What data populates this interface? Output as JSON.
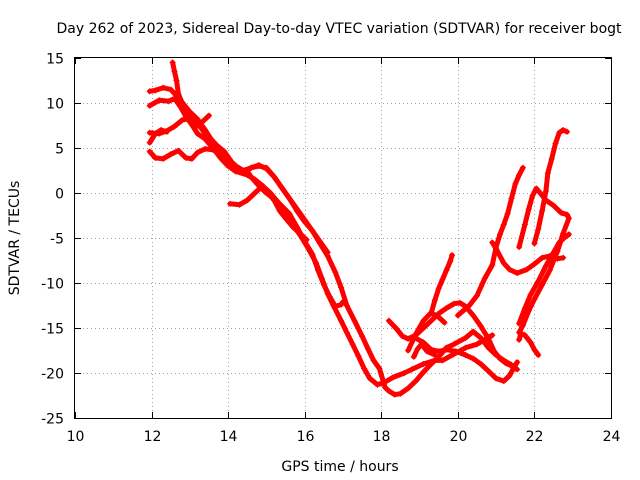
{
  "chart_data": {
    "type": "line",
    "title": "Day 262 of 2023, Sidereal Day-to-day VTEC variation (SDTVAR) for receiver bogt",
    "xlabel": "GPS time / hours",
    "ylabel": "SDTVAR / TECUs",
    "xlim": [
      10,
      24
    ],
    "ylim": [
      -25,
      15
    ],
    "xticks": [
      10,
      12,
      14,
      16,
      18,
      20,
      22,
      24
    ],
    "yticks": [
      -25,
      -20,
      -15,
      -10,
      -5,
      0,
      5,
      10,
      15
    ],
    "grid": true,
    "marker": "plus",
    "color": "#ff0000",
    "series": [
      {
        "points": [
          [
            12.55,
            14.5
          ],
          [
            12.6,
            13.5
          ],
          [
            12.65,
            12.5
          ],
          [
            12.7,
            11.0
          ],
          [
            12.8,
            10.0
          ],
          [
            12.9,
            9.0
          ],
          [
            13.0,
            8.2
          ],
          [
            13.1,
            7.8
          ],
          [
            13.2,
            7.5
          ],
          [
            13.3,
            7.8
          ],
          [
            13.4,
            8.2
          ],
          [
            13.5,
            8.6
          ]
        ]
      },
      {
        "points": [
          [
            11.95,
            11.3
          ],
          [
            12.1,
            11.4
          ],
          [
            12.3,
            11.7
          ],
          [
            12.5,
            11.5
          ],
          [
            12.7,
            10.6
          ],
          [
            12.85,
            9.8
          ],
          [
            13.0,
            9.0
          ],
          [
            13.2,
            8.2
          ],
          [
            13.4,
            7.0
          ],
          [
            13.55,
            6.0
          ],
          [
            13.7,
            5.3
          ],
          [
            13.9,
            4.6
          ],
          [
            14.1,
            3.4
          ],
          [
            14.3,
            2.6
          ],
          [
            14.5,
            2.4
          ],
          [
            14.6,
            1.8
          ],
          [
            14.8,
            0.8
          ],
          [
            15.0,
            0.0
          ],
          [
            15.3,
            -1.0
          ],
          [
            15.6,
            -2.3
          ],
          [
            15.8,
            -3.8
          ],
          [
            16.0,
            -5.4
          ],
          [
            16.2,
            -6.8
          ],
          [
            16.35,
            -8.6
          ],
          [
            16.5,
            -10.2
          ],
          [
            16.65,
            -11.5
          ],
          [
            16.8,
            -12.6
          ],
          [
            16.95,
            -12.4
          ],
          [
            17.0,
            -12.1
          ]
        ]
      },
      {
        "points": [
          [
            11.95,
            9.7
          ],
          [
            12.2,
            10.3
          ],
          [
            12.45,
            10.2
          ],
          [
            12.6,
            10.5
          ],
          [
            12.75,
            9.6
          ],
          [
            12.9,
            8.5
          ],
          [
            13.05,
            7.6
          ],
          [
            13.2,
            6.6
          ],
          [
            13.4,
            6.0
          ],
          [
            13.6,
            5.0
          ],
          [
            13.8,
            3.9
          ],
          [
            14.0,
            3.0
          ],
          [
            14.2,
            2.4
          ],
          [
            14.5,
            2.0
          ],
          [
            14.7,
            1.5
          ],
          [
            14.9,
            0.8
          ],
          [
            15.1,
            0.0
          ],
          [
            15.3,
            -1.0
          ],
          [
            15.5,
            -2.2
          ],
          [
            15.7,
            -3.6
          ],
          [
            15.9,
            -4.8
          ],
          [
            16.1,
            -6.2
          ],
          [
            16.3,
            -7.8
          ],
          [
            16.45,
            -9.5
          ],
          [
            16.6,
            -11.2
          ],
          [
            16.75,
            -12.5
          ],
          [
            16.95,
            -14.2
          ],
          [
            17.1,
            -15.5
          ],
          [
            17.25,
            -16.8
          ],
          [
            17.4,
            -18.1
          ],
          [
            17.55,
            -19.5
          ],
          [
            17.7,
            -20.6
          ],
          [
            17.9,
            -21.3
          ],
          [
            18.1,
            -21.0
          ],
          [
            18.3,
            -20.5
          ],
          [
            18.6,
            -20.0
          ],
          [
            18.8,
            -19.6
          ],
          [
            19.1,
            -19.0
          ],
          [
            19.4,
            -18.6
          ],
          [
            19.6,
            -18.6
          ],
          [
            19.9,
            -17.9
          ],
          [
            20.2,
            -17.2
          ],
          [
            20.5,
            -16.8
          ],
          [
            20.7,
            -16.3
          ],
          [
            20.9,
            -15.8
          ]
        ]
      },
      {
        "points": [
          [
            11.95,
            6.7
          ],
          [
            12.2,
            6.6
          ],
          [
            12.4,
            6.9
          ],
          [
            12.6,
            7.4
          ],
          [
            12.8,
            8.1
          ],
          [
            13.0,
            8.3
          ],
          [
            13.2,
            7.7
          ],
          [
            13.35,
            6.9
          ],
          [
            13.5,
            5.8
          ],
          [
            13.65,
            5.0
          ],
          [
            13.8,
            4.4
          ],
          [
            14.0,
            3.5
          ],
          [
            14.2,
            2.7
          ],
          [
            14.4,
            2.3
          ],
          [
            14.6,
            2.8
          ],
          [
            14.8,
            3.1
          ],
          [
            15.0,
            2.7
          ],
          [
            15.2,
            1.8
          ],
          [
            15.4,
            0.6
          ],
          [
            15.6,
            -0.6
          ],
          [
            15.8,
            -1.8
          ],
          [
            16.0,
            -3.0
          ],
          [
            16.2,
            -4.2
          ],
          [
            16.4,
            -5.4
          ],
          [
            16.6,
            -6.6
          ]
        ]
      },
      {
        "points": [
          [
            11.95,
            5.6
          ],
          [
            12.1,
            6.6
          ],
          [
            12.25,
            7.0
          ],
          [
            12.4,
            6.8
          ]
        ]
      },
      {
        "points": [
          [
            11.95,
            4.6
          ],
          [
            12.1,
            3.9
          ],
          [
            12.3,
            3.8
          ],
          [
            12.5,
            4.3
          ],
          [
            12.7,
            4.7
          ],
          [
            12.9,
            3.9
          ],
          [
            13.05,
            3.8
          ],
          [
            13.2,
            4.5
          ],
          [
            13.4,
            4.9
          ],
          [
            13.6,
            4.8
          ],
          [
            13.8,
            4.5
          ],
          [
            14.0,
            3.8
          ],
          [
            14.2,
            3.0
          ],
          [
            14.4,
            2.5
          ],
          [
            14.6,
            2.8
          ],
          [
            14.8,
            3.0
          ],
          [
            15.0,
            2.8
          ],
          [
            15.2,
            1.8
          ],
          [
            15.4,
            0.6
          ],
          [
            15.6,
            -0.6
          ],
          [
            15.8,
            -2.0
          ],
          [
            16.0,
            -3.2
          ],
          [
            16.2,
            -4.2
          ],
          [
            16.4,
            -5.6
          ],
          [
            16.6,
            -7.0
          ],
          [
            16.8,
            -8.8
          ],
          [
            16.95,
            -10.5
          ],
          [
            17.1,
            -12.5
          ],
          [
            17.3,
            -14.2
          ],
          [
            17.5,
            -15.9
          ],
          [
            17.65,
            -17.3
          ],
          [
            17.8,
            -18.6
          ],
          [
            17.95,
            -19.5
          ],
          [
            18.1,
            -21.6
          ],
          [
            18.2,
            -22.0
          ],
          [
            18.35,
            -22.4
          ],
          [
            18.5,
            -22.3
          ],
          [
            18.7,
            -21.7
          ],
          [
            18.9,
            -20.9
          ],
          [
            19.1,
            -19.9
          ],
          [
            19.3,
            -19.0
          ],
          [
            19.5,
            -18.2
          ],
          [
            19.7,
            -17.2
          ],
          [
            19.9,
            -16.8
          ],
          [
            20.2,
            -16.1
          ],
          [
            20.4,
            -15.4
          ],
          [
            20.6,
            -16.1
          ],
          [
            20.8,
            -17.2
          ],
          [
            21.0,
            -18.0
          ],
          [
            21.2,
            -18.6
          ],
          [
            21.4,
            -19.1
          ],
          [
            21.55,
            -19.6
          ]
        ]
      },
      {
        "points": [
          [
            14.05,
            -1.2
          ],
          [
            14.3,
            -1.3
          ],
          [
            14.5,
            -0.8
          ],
          [
            14.7,
            0.0
          ],
          [
            14.9,
            0.8
          ],
          [
            15.0,
            0.3
          ],
          [
            15.2,
            -0.8
          ],
          [
            15.35,
            -2.0
          ],
          [
            15.5,
            -2.8
          ],
          [
            15.7,
            -3.8
          ],
          [
            15.9,
            -4.6
          ],
          [
            16.05,
            -5.2
          ]
        ]
      },
      {
        "points": [
          [
            18.2,
            -14.2
          ],
          [
            18.4,
            -15.1
          ],
          [
            18.55,
            -15.9
          ],
          [
            18.7,
            -16.2
          ],
          [
            18.9,
            -15.8
          ],
          [
            19.1,
            -15.0
          ],
          [
            19.3,
            -14.2
          ],
          [
            19.5,
            -13.4
          ],
          [
            19.7,
            -12.8
          ],
          [
            19.9,
            -12.3
          ],
          [
            20.05,
            -12.2
          ],
          [
            20.2,
            -12.6
          ],
          [
            20.4,
            -13.6
          ],
          [
            20.6,
            -14.8
          ],
          [
            20.8,
            -16.2
          ],
          [
            20.95,
            -17.6
          ],
          [
            21.1,
            -18.4
          ],
          [
            21.25,
            -18.9
          ],
          [
            21.4,
            -19.2
          ],
          [
            21.5,
            -19.5
          ]
        ]
      },
      {
        "points": [
          [
            18.85,
            -16.0
          ],
          [
            19.1,
            -16.6
          ],
          [
            19.3,
            -17.4
          ],
          [
            19.5,
            -17.6
          ],
          [
            19.7,
            -17.4
          ],
          [
            19.95,
            -17.6
          ],
          [
            20.2,
            -18.0
          ],
          [
            20.4,
            -18.4
          ],
          [
            20.6,
            -19.0
          ],
          [
            20.8,
            -19.8
          ],
          [
            21.0,
            -20.6
          ],
          [
            21.2,
            -20.9
          ],
          [
            21.35,
            -20.3
          ],
          [
            21.45,
            -19.5
          ],
          [
            21.55,
            -18.8
          ]
        ]
      },
      {
        "points": [
          [
            18.7,
            -17.5
          ],
          [
            18.9,
            -15.7
          ],
          [
            19.1,
            -14.2
          ],
          [
            19.3,
            -13.3
          ],
          [
            19.5,
            -13.8
          ],
          [
            19.65,
            -14.4
          ]
        ]
      },
      {
        "points": [
          [
            18.85,
            -18.2
          ],
          [
            18.95,
            -17.3
          ],
          [
            19.05,
            -16.8
          ],
          [
            19.2,
            -17.6
          ],
          [
            19.4,
            -18.0
          ]
        ]
      },
      {
        "points": [
          [
            19.3,
            -13.4
          ],
          [
            19.4,
            -11.9
          ],
          [
            19.5,
            -10.6
          ],
          [
            19.6,
            -9.6
          ],
          [
            19.7,
            -8.6
          ],
          [
            19.8,
            -7.6
          ],
          [
            19.85,
            -6.9
          ]
        ]
      },
      {
        "points": [
          [
            20.0,
            -13.6
          ],
          [
            20.3,
            -12.5
          ],
          [
            20.5,
            -11.4
          ],
          [
            20.7,
            -9.5
          ],
          [
            20.9,
            -8.0
          ],
          [
            21.0,
            -6.0
          ],
          [
            21.1,
            -4.6
          ],
          [
            21.2,
            -3.5
          ],
          [
            21.3,
            -2.3
          ],
          [
            21.4,
            -0.6
          ],
          [
            21.5,
            1.0
          ],
          [
            21.6,
            2.0
          ],
          [
            21.7,
            2.8
          ]
        ]
      },
      {
        "points": [
          [
            20.9,
            -5.5
          ],
          [
            21.0,
            -6.2
          ],
          [
            21.2,
            -7.8
          ],
          [
            21.35,
            -8.5
          ],
          [
            21.55,
            -8.9
          ],
          [
            21.8,
            -8.5
          ],
          [
            22.0,
            -7.9
          ],
          [
            22.2,
            -7.2
          ],
          [
            22.4,
            -7.0
          ],
          [
            22.6,
            -7.3
          ],
          [
            22.75,
            -7.2
          ]
        ]
      },
      {
        "points": [
          [
            21.6,
            -14.5
          ],
          [
            21.75,
            -12.8
          ],
          [
            21.9,
            -11.3
          ],
          [
            22.1,
            -9.8
          ],
          [
            22.3,
            -8.1
          ],
          [
            22.5,
            -6.6
          ],
          [
            22.65,
            -5.5
          ],
          [
            22.8,
            -4.9
          ],
          [
            22.9,
            -4.6
          ]
        ]
      },
      {
        "points": [
          [
            21.6,
            -16.3
          ],
          [
            21.65,
            -15.6
          ],
          [
            21.75,
            -15.8
          ],
          [
            21.9,
            -16.6
          ],
          [
            22.0,
            -17.4
          ],
          [
            22.1,
            -18.0
          ]
        ]
      },
      {
        "points": [
          [
            21.6,
            -6.0
          ],
          [
            21.75,
            -3.5
          ],
          [
            21.85,
            -1.8
          ],
          [
            21.95,
            -0.3
          ],
          [
            22.05,
            0.5
          ],
          [
            22.15,
            0.0
          ],
          [
            22.3,
            -0.8
          ],
          [
            22.5,
            -1.4
          ],
          [
            22.7,
            -2.2
          ],
          [
            22.85,
            -2.4
          ],
          [
            22.9,
            -2.8
          ],
          [
            22.75,
            -4.5
          ],
          [
            22.6,
            -6.5
          ],
          [
            22.4,
            -8.6
          ],
          [
            22.2,
            -10.2
          ],
          [
            22.0,
            -11.8
          ],
          [
            21.85,
            -13.1
          ],
          [
            21.7,
            -14.7
          ],
          [
            21.6,
            -15.5
          ]
        ]
      },
      {
        "points": [
          [
            22.0,
            -5.6
          ],
          [
            22.1,
            -4.0
          ],
          [
            22.2,
            -2.0
          ],
          [
            22.3,
            0.2
          ],
          [
            22.35,
            2.2
          ],
          [
            22.45,
            3.8
          ],
          [
            22.55,
            5.5
          ],
          [
            22.65,
            6.7
          ],
          [
            22.75,
            7.0
          ],
          [
            22.85,
            6.8
          ]
        ]
      }
    ]
  }
}
